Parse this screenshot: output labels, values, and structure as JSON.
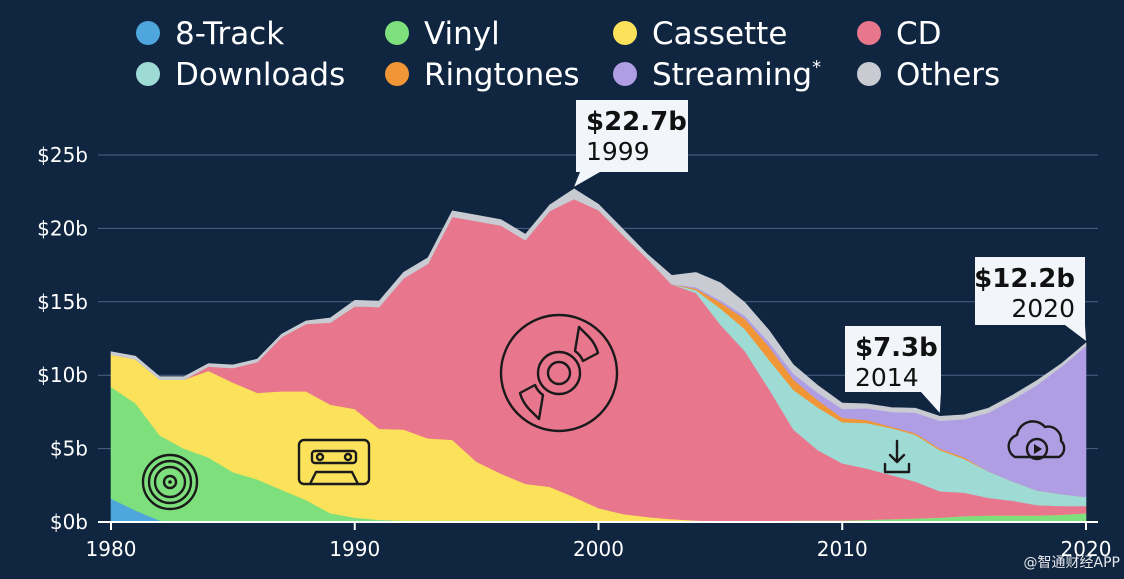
{
  "chart_data": {
    "type": "area",
    "stacked": true,
    "x": [
      1980,
      1981,
      1982,
      1983,
      1984,
      1985,
      1986,
      1987,
      1988,
      1989,
      1990,
      1991,
      1992,
      1993,
      1994,
      1995,
      1996,
      1997,
      1998,
      1999,
      2000,
      2001,
      2002,
      2003,
      2004,
      2005,
      2006,
      2007,
      2008,
      2009,
      2010,
      2011,
      2012,
      2013,
      2014,
      2015,
      2016,
      2017,
      2018,
      2019,
      2020
    ],
    "xticks": [
      1980,
      1990,
      2000,
      2010,
      2020
    ],
    "ylim": [
      0,
      25
    ],
    "yticks": [
      0,
      5,
      10,
      15,
      20,
      25
    ],
    "ytick_labels": [
      "$0b",
      "$5b",
      "$10b",
      "$15b",
      "$20b",
      "$25b"
    ],
    "series": [
      {
        "name": "8-Track",
        "color": "#4ea6dc",
        "values": [
          1.6,
          0.8,
          0.1,
          0,
          0,
          0,
          0,
          0,
          0,
          0,
          0,
          0,
          0,
          0,
          0,
          0,
          0,
          0,
          0,
          0,
          0,
          0,
          0,
          0,
          0,
          0,
          0,
          0,
          0,
          0,
          0,
          0,
          0,
          0,
          0,
          0,
          0,
          0,
          0,
          0,
          0
        ]
      },
      {
        "name": "Vinyl",
        "color": "#7ee07d",
        "values": [
          7.6,
          7.3,
          5.8,
          5.0,
          4.4,
          3.4,
          2.9,
          2.2,
          1.5,
          0.6,
          0.3,
          0.15,
          0.1,
          0.1,
          0.1,
          0.1,
          0.1,
          0.1,
          0.1,
          0.1,
          0.05,
          0.05,
          0.05,
          0.05,
          0.05,
          0.05,
          0.05,
          0.05,
          0.1,
          0.1,
          0.1,
          0.15,
          0.2,
          0.25,
          0.3,
          0.4,
          0.45,
          0.45,
          0.45,
          0.5,
          0.6
        ]
      },
      {
        "name": "Cassette",
        "color": "#fbe25a",
        "values": [
          2.2,
          3.0,
          3.8,
          4.7,
          5.9,
          6.1,
          5.9,
          6.7,
          7.4,
          7.4,
          7.4,
          6.2,
          6.2,
          5.6,
          5.5,
          4.0,
          3.2,
          2.5,
          2.3,
          1.6,
          0.9,
          0.5,
          0.3,
          0.15,
          0.05,
          0,
          0,
          0,
          0,
          0,
          0,
          0,
          0,
          0,
          0,
          0,
          0,
          0,
          0,
          0,
          0
        ]
      },
      {
        "name": "CD",
        "color": "#e8778d",
        "values": [
          0,
          0,
          0,
          0,
          0.3,
          1.0,
          2.1,
          3.7,
          4.6,
          5.6,
          7.0,
          8.3,
          10.3,
          11.9,
          15.2,
          16.4,
          16.9,
          16.6,
          18.8,
          20.3,
          20.3,
          19.0,
          17.6,
          16.0,
          15.5,
          13.4,
          11.6,
          9.0,
          6.2,
          4.8,
          3.9,
          3.5,
          3.0,
          2.5,
          1.8,
          1.6,
          1.2,
          1.0,
          0.7,
          0.6,
          0.5
        ]
      },
      {
        "name": "Downloads",
        "color": "#9edbd5",
        "values": [
          0,
          0,
          0,
          0,
          0,
          0,
          0,
          0,
          0,
          0,
          0,
          0,
          0,
          0,
          0,
          0,
          0,
          0,
          0,
          0,
          0,
          0,
          0,
          0,
          0.2,
          1.1,
          1.5,
          2.0,
          2.7,
          2.9,
          2.8,
          3.1,
          3.2,
          3.2,
          2.8,
          2.3,
          1.8,
          1.3,
          1.0,
          0.8,
          0.6
        ]
      },
      {
        "name": "Ringtones",
        "color": "#f09636",
        "values": [
          0,
          0,
          0,
          0,
          0,
          0,
          0,
          0,
          0,
          0,
          0,
          0,
          0,
          0,
          0,
          0,
          0,
          0,
          0,
          0,
          0,
          0,
          0,
          0,
          0.1,
          0.4,
          0.7,
          0.9,
          0.7,
          0.5,
          0.3,
          0.2,
          0.1,
          0.1,
          0.1,
          0.1,
          0,
          0,
          0,
          0,
          0
        ]
      },
      {
        "name": "Streaming",
        "color": "#b09ee4",
        "values": [
          0,
          0,
          0,
          0,
          0,
          0,
          0,
          0,
          0,
          0,
          0,
          0,
          0,
          0,
          0,
          0,
          0,
          0,
          0,
          0,
          0,
          0,
          0,
          0,
          0.1,
          0.15,
          0.2,
          0.3,
          0.4,
          0.5,
          0.6,
          0.8,
          1.0,
          1.4,
          1.9,
          2.6,
          4.0,
          5.6,
          7.2,
          8.7,
          10.3
        ]
      },
      {
        "name": "Others",
        "color": "#c8ccd2",
        "values": [
          0.2,
          0.2,
          0.2,
          0.2,
          0.2,
          0.2,
          0.2,
          0.2,
          0.2,
          0.3,
          0.4,
          0.4,
          0.4,
          0.4,
          0.4,
          0.4,
          0.4,
          0.4,
          0.4,
          0.7,
          0.4,
          0.4,
          0.3,
          0.6,
          1.0,
          1.2,
          0.9,
          0.8,
          0.6,
          0.5,
          0.4,
          0.3,
          0.3,
          0.3,
          0.3,
          0.3,
          0.3,
          0.3,
          0.3,
          0.2,
          0.2
        ]
      }
    ],
    "annotations": [
      {
        "value": "$22.7b",
        "year": "1999",
        "x": 1999,
        "y": 22.7
      },
      {
        "value": "$7.3b",
        "year": "2014",
        "x": 2014,
        "y": 7.3
      },
      {
        "value": "$12.2b",
        "year": "2020",
        "x": 2020,
        "y": 12.2
      }
    ],
    "legend_position": "top",
    "grid": true,
    "legend_marker_suffix": {
      "Streaming": "*"
    }
  },
  "watermark": "@智通财经APP"
}
